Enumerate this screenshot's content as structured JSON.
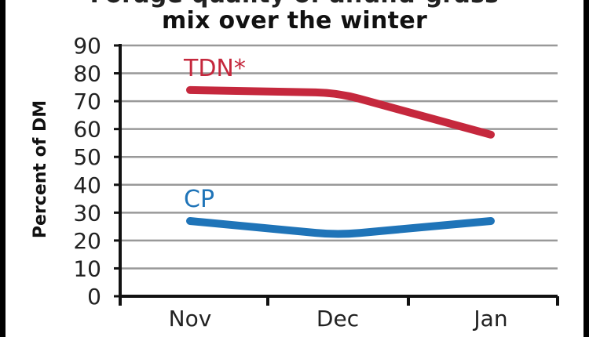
{
  "title_line1": "Forage quality of alfalfa-grass",
  "title_line2": "mix over the winter",
  "chart_data": {
    "type": "line",
    "categories": [
      "Nov",
      "Dec",
      "Jan"
    ],
    "ylabel": "Percent of DM",
    "ylim": [
      0,
      90
    ],
    "yticks": [
      "0",
      "10",
      "20",
      "30",
      "40",
      "50",
      "60",
      "70",
      "80",
      "90"
    ],
    "grid": true,
    "series": [
      {
        "name": "TDN*",
        "values": [
          74,
          73,
          58
        ],
        "color": "#c5283d"
      },
      {
        "name": "CP",
        "values": [
          27,
          22,
          27
        ],
        "color": "#1f74b8"
      }
    ]
  }
}
